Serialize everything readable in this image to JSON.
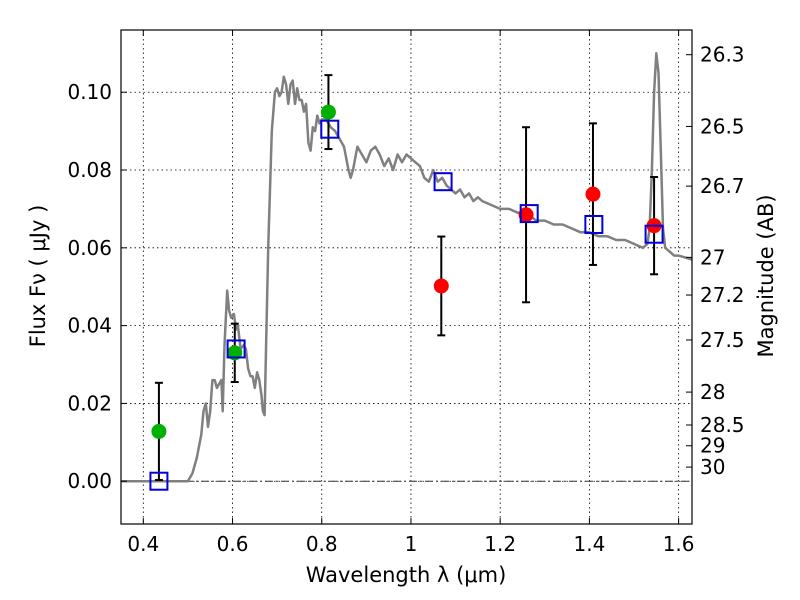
{
  "chart_data": {
    "type": "scatter",
    "title": "",
    "xlabel": "Wavelength  λ (μm)",
    "ylabel": "Flux  Fν  ( μJy )",
    "ylabel_right": "Magnitude (AB)",
    "xlim": [
      0.35,
      1.63
    ],
    "ylim": [
      -0.011,
      0.116
    ],
    "grid": true,
    "x_ticks": [
      0.4,
      0.6,
      0.8,
      1.0,
      1.2,
      1.4,
      1.6
    ],
    "x_tick_labels": [
      "0.4",
      "0.6",
      "0.8",
      "1",
      "1.2",
      "1.4",
      "1.6"
    ],
    "y_ticks": [
      0.0,
      0.02,
      0.04,
      0.06,
      0.08,
      0.1
    ],
    "y_tick_labels": [
      "0.00",
      "0.02",
      "0.04",
      "0.06",
      "0.08",
      "0.10"
    ],
    "right_ticks": [
      {
        "label": "26.3",
        "mag": 26.3
      },
      {
        "label": "26.5",
        "mag": 26.5
      },
      {
        "label": "26.7",
        "mag": 26.7
      },
      {
        "label": "27",
        "mag": 27.0
      },
      {
        "label": "27.2",
        "mag": 27.2
      },
      {
        "label": "27.5",
        "mag": 27.5
      },
      {
        "label": "28",
        "mag": 28.0
      },
      {
        "label": "28.5",
        "mag": 28.5
      },
      {
        "label": "29",
        "mag": 29.0
      },
      {
        "label": "30",
        "mag": 30.0
      }
    ],
    "sed_model": {
      "name": "model spectrum",
      "color": "#808080",
      "points": [
        [
          0.35,
          0.0
        ],
        [
          0.5,
          0.0
        ],
        [
          0.51,
          0.002
        ],
        [
          0.52,
          0.006
        ],
        [
          0.53,
          0.012
        ],
        [
          0.535,
          0.018
        ],
        [
          0.54,
          0.02
        ],
        [
          0.545,
          0.014
        ],
        [
          0.55,
          0.018
        ],
        [
          0.555,
          0.026
        ],
        [
          0.56,
          0.026
        ],
        [
          0.565,
          0.024
        ],
        [
          0.57,
          0.025
        ],
        [
          0.575,
          0.026
        ],
        [
          0.578,
          0.018
        ],
        [
          0.582,
          0.035
        ],
        [
          0.588,
          0.049
        ],
        [
          0.592,
          0.044
        ],
        [
          0.597,
          0.042
        ],
        [
          0.603,
          0.043
        ],
        [
          0.608,
          0.039
        ],
        [
          0.612,
          0.04
        ],
        [
          0.618,
          0.034
        ],
        [
          0.625,
          0.035
        ],
        [
          0.63,
          0.034
        ],
        [
          0.635,
          0.029
        ],
        [
          0.64,
          0.027
        ],
        [
          0.645,
          0.027
        ],
        [
          0.65,
          0.024
        ],
        [
          0.655,
          0.028
        ],
        [
          0.66,
          0.026
        ],
        [
          0.665,
          0.022
        ],
        [
          0.668,
          0.018
        ],
        [
          0.672,
          0.017
        ],
        [
          0.68,
          0.06
        ],
        [
          0.688,
          0.09
        ],
        [
          0.695,
          0.1
        ],
        [
          0.7,
          0.101
        ],
        [
          0.705,
          0.099
        ],
        [
          0.71,
          0.1
        ],
        [
          0.715,
          0.104
        ],
        [
          0.72,
          0.102
        ],
        [
          0.725,
          0.097
        ],
        [
          0.73,
          0.102
        ],
        [
          0.735,
          0.103
        ],
        [
          0.74,
          0.097
        ],
        [
          0.745,
          0.101
        ],
        [
          0.75,
          0.098
        ],
        [
          0.755,
          0.098
        ],
        [
          0.76,
          0.095
        ],
        [
          0.765,
          0.097
        ],
        [
          0.77,
          0.087
        ],
        [
          0.775,
          0.085
        ],
        [
          0.78,
          0.091
        ],
        [
          0.785,
          0.09
        ],
        [
          0.79,
          0.094
        ],
        [
          0.795,
          0.092
        ],
        [
          0.8,
          0.093
        ],
        [
          0.81,
          0.093
        ],
        [
          0.82,
          0.091
        ],
        [
          0.83,
          0.09
        ],
        [
          0.84,
          0.088
        ],
        [
          0.85,
          0.086
        ],
        [
          0.86,
          0.08
        ],
        [
          0.865,
          0.078
        ],
        [
          0.87,
          0.08
        ],
        [
          0.88,
          0.086
        ],
        [
          0.89,
          0.084
        ],
        [
          0.9,
          0.082
        ],
        [
          0.91,
          0.085
        ],
        [
          0.92,
          0.086
        ],
        [
          0.93,
          0.084
        ],
        [
          0.94,
          0.081
        ],
        [
          0.95,
          0.083
        ],
        [
          0.96,
          0.08
        ],
        [
          0.97,
          0.084
        ],
        [
          0.98,
          0.082
        ],
        [
          0.99,
          0.084
        ],
        [
          1.0,
          0.083
        ],
        [
          1.01,
          0.082
        ],
        [
          1.02,
          0.081
        ],
        [
          1.03,
          0.078
        ],
        [
          1.04,
          0.077
        ],
        [
          1.05,
          0.08
        ],
        [
          1.06,
          0.077
        ],
        [
          1.07,
          0.078
        ],
        [
          1.08,
          0.076
        ],
        [
          1.09,
          0.075
        ],
        [
          1.1,
          0.074
        ],
        [
          1.11,
          0.075
        ],
        [
          1.12,
          0.073
        ],
        [
          1.13,
          0.074
        ],
        [
          1.14,
          0.072
        ],
        [
          1.15,
          0.073
        ],
        [
          1.16,
          0.072
        ],
        [
          1.18,
          0.071
        ],
        [
          1.2,
          0.07
        ],
        [
          1.22,
          0.07
        ],
        [
          1.24,
          0.069
        ],
        [
          1.26,
          0.069
        ],
        [
          1.28,
          0.067
        ],
        [
          1.3,
          0.067
        ],
        [
          1.32,
          0.066
        ],
        [
          1.34,
          0.066
        ],
        [
          1.36,
          0.065
        ],
        [
          1.38,
          0.064
        ],
        [
          1.4,
          0.064
        ],
        [
          1.42,
          0.063
        ],
        [
          1.44,
          0.063
        ],
        [
          1.46,
          0.062
        ],
        [
          1.48,
          0.062
        ],
        [
          1.5,
          0.061
        ],
        [
          1.52,
          0.06
        ],
        [
          1.53,
          0.061
        ],
        [
          1.535,
          0.065
        ],
        [
          1.54,
          0.08
        ],
        [
          1.545,
          0.1
        ],
        [
          1.55,
          0.11
        ],
        [
          1.555,
          0.105
        ],
        [
          1.56,
          0.085
        ],
        [
          1.565,
          0.065
        ],
        [
          1.57,
          0.06
        ],
        [
          1.58,
          0.059
        ],
        [
          1.59,
          0.058
        ],
        [
          1.6,
          0.058
        ],
        [
          1.63,
          0.057
        ]
      ]
    },
    "series": [
      {
        "name": "green detections",
        "color": "#00b000",
        "marker": "circle",
        "points": [
          {
            "x": 0.435,
            "y": 0.0128,
            "err_low": 0.0125,
            "err_high": 0.0125
          },
          {
            "x": 0.605,
            "y": 0.033,
            "err_low": 0.0075,
            "err_high": 0.0075
          },
          {
            "x": 0.815,
            "y": 0.0949,
            "err_low": 0.0095,
            "err_high": 0.0095
          }
        ]
      },
      {
        "name": "red detections",
        "color": "#ff0000",
        "marker": "circle",
        "points": [
          {
            "x": 1.068,
            "y": 0.0502,
            "err_low": 0.0127,
            "err_high": 0.0127
          },
          {
            "x": 1.258,
            "y": 0.0685,
            "err_low": 0.0225,
            "err_high": 0.0225
          },
          {
            "x": 1.408,
            "y": 0.0738,
            "err_low": 0.0182,
            "err_high": 0.0182
          },
          {
            "x": 1.545,
            "y": 0.0657,
            "err_low": 0.0125,
            "err_high": 0.0125
          }
        ]
      },
      {
        "name": "model band fluxes",
        "color": "#0000dd",
        "marker": "open-square",
        "points": [
          {
            "x": 0.435,
            "y": 0.0
          },
          {
            "x": 0.608,
            "y": 0.034
          },
          {
            "x": 0.818,
            "y": 0.0905
          },
          {
            "x": 1.072,
            "y": 0.077
          },
          {
            "x": 1.265,
            "y": 0.0688
          },
          {
            "x": 1.41,
            "y": 0.066
          },
          {
            "x": 1.545,
            "y": 0.0635
          }
        ]
      }
    ]
  }
}
